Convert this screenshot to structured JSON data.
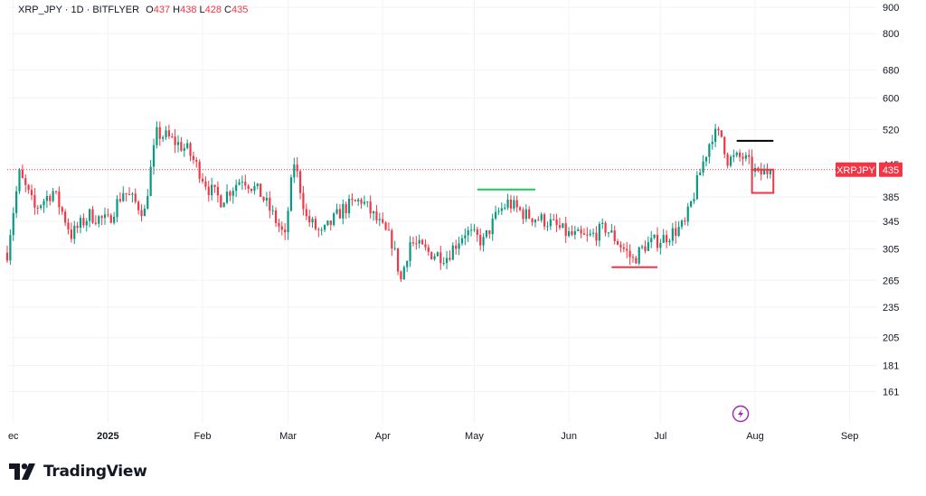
{
  "legend": {
    "symbol": "XRP_JPY · 1D · BITFLYER",
    "o_label": "O",
    "o_value": "437",
    "h_label": "H",
    "h_value": "438",
    "l_label": "L",
    "l_value": "428",
    "c_label": "C",
    "c_value": "435"
  },
  "brand": {
    "name": "TradingView",
    "logo_icon": "tradingview-logo-icon"
  },
  "colors": {
    "up": "#089981",
    "down": "#f23645",
    "grid": "#f0f3fa",
    "text": "#131722",
    "green_line": "#22c55e"
  },
  "price_tag": {
    "symbol": "XRPJPY",
    "value": "435"
  },
  "snapshot_icon": "lightning-icon",
  "chart_data": {
    "type": "candlestick",
    "y_scale": "log",
    "ylim": [
      140,
      930
    ],
    "y_ticks": [
      900,
      800,
      680,
      600,
      520,
      445,
      385,
      345,
      305,
      265,
      235,
      205,
      181,
      161
    ],
    "x_ticks": [
      {
        "label": "ec",
        "date": "2024-12-01",
        "bold": false
      },
      {
        "label": "2025",
        "date": "2025-01-01",
        "bold": true
      },
      {
        "label": "Feb",
        "date": "2025-02-01",
        "bold": false
      },
      {
        "label": "Mar",
        "date": "2025-03-01",
        "bold": false
      },
      {
        "label": "Apr",
        "date": "2025-04-01",
        "bold": false
      },
      {
        "label": "May",
        "date": "2025-05-01",
        "bold": false
      },
      {
        "label": "Jun",
        "date": "2025-06-01",
        "bold": false
      },
      {
        "label": "Jul",
        "date": "2025-07-01",
        "bold": false
      },
      {
        "label": "Aug",
        "date": "2025-08-01",
        "bold": false
      },
      {
        "label": "Sep",
        "date": "2025-09-01",
        "bold": false
      }
    ],
    "last_price": 435,
    "anchors": [
      [
        "2024-11-29",
        300
      ],
      [
        "2024-12-03",
        425
      ],
      [
        "2024-12-08",
        365
      ],
      [
        "2024-12-14",
        395
      ],
      [
        "2024-12-20",
        325
      ],
      [
        "2024-12-26",
        355
      ],
      [
        "2025-01-01",
        345
      ],
      [
        "2025-01-06",
        395
      ],
      [
        "2025-01-13",
        360
      ],
      [
        "2025-01-17",
        510
      ],
      [
        "2025-01-20",
        505
      ],
      [
        "2025-01-27",
        475
      ],
      [
        "2025-02-03",
        400
      ],
      [
        "2025-02-07",
        380
      ],
      [
        "2025-02-14",
        420
      ],
      [
        "2025-02-20",
        390
      ],
      [
        "2025-02-28",
        320
      ],
      [
        "2025-03-03",
        450
      ],
      [
        "2025-03-07",
        350
      ],
      [
        "2025-03-12",
        325
      ],
      [
        "2025-03-19",
        365
      ],
      [
        "2025-03-25",
        380
      ],
      [
        "2025-03-31",
        340
      ],
      [
        "2025-04-04",
        315
      ],
      [
        "2025-04-07",
        265
      ],
      [
        "2025-04-10",
        315
      ],
      [
        "2025-04-16",
        300
      ],
      [
        "2025-04-22",
        295
      ],
      [
        "2025-04-28",
        330
      ],
      [
        "2025-05-04",
        315
      ],
      [
        "2025-05-09",
        360
      ],
      [
        "2025-05-12",
        375
      ],
      [
        "2025-05-18",
        355
      ],
      [
        "2025-05-25",
        345
      ],
      [
        "2025-06-01",
        325
      ],
      [
        "2025-06-07",
        320
      ],
      [
        "2025-06-13",
        335
      ],
      [
        "2025-06-18",
        310
      ],
      [
        "2025-06-22",
        290
      ],
      [
        "2025-06-26",
        310
      ],
      [
        "2025-07-02",
        320
      ],
      [
        "2025-07-09",
        340
      ],
      [
        "2025-07-12",
        390
      ],
      [
        "2025-07-14",
        430
      ],
      [
        "2025-07-18",
        510
      ],
      [
        "2025-07-21",
        505
      ],
      [
        "2025-07-23",
        455
      ],
      [
        "2025-07-28",
        460
      ],
      [
        "2025-08-02",
        425
      ],
      [
        "2025-08-06",
        435
      ]
    ],
    "annotations": [
      {
        "type": "hline",
        "color": "#22c55e",
        "start": "2025-05-02",
        "end": "2025-05-21",
        "price": 398
      },
      {
        "type": "hline",
        "color": "#f23645",
        "start": "2025-06-15",
        "end": "2025-06-30",
        "price": 281
      },
      {
        "type": "hline",
        "color": "#000000",
        "start": "2025-07-26",
        "end": "2025-08-07",
        "price": 495
      },
      {
        "type": "box",
        "color": "#f23645",
        "start": "2025-07-31",
        "end": "2025-08-07",
        "price_top": 435,
        "price_bottom": 392
      }
    ]
  }
}
